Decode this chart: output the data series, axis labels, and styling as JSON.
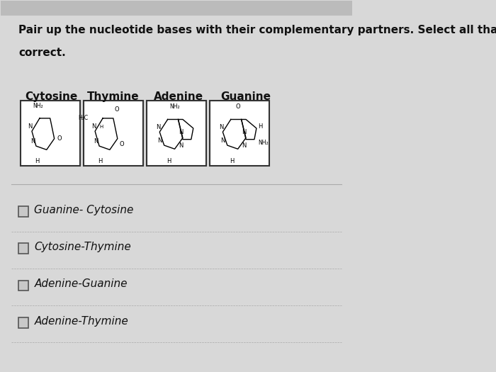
{
  "title_line1": "Pair up the nucleotide bases with their complementary partners. Select all that are",
  "title_line2": "correct.",
  "base_labels": [
    "Cytosine",
    "Thymine",
    "Adenine",
    "Guanine"
  ],
  "options": [
    "Guanine- Cytosine",
    "Cytosine-Thymine",
    "Adenine-Guanine",
    "Adenine-Thymine"
  ],
  "bg_color": "#d8d8d8",
  "box_bg_color": "#ffffff",
  "box_border_color": "#333333",
  "text_color": "#111111",
  "title_fontsize": 11,
  "label_fontsize": 11,
  "option_fontsize": 11
}
